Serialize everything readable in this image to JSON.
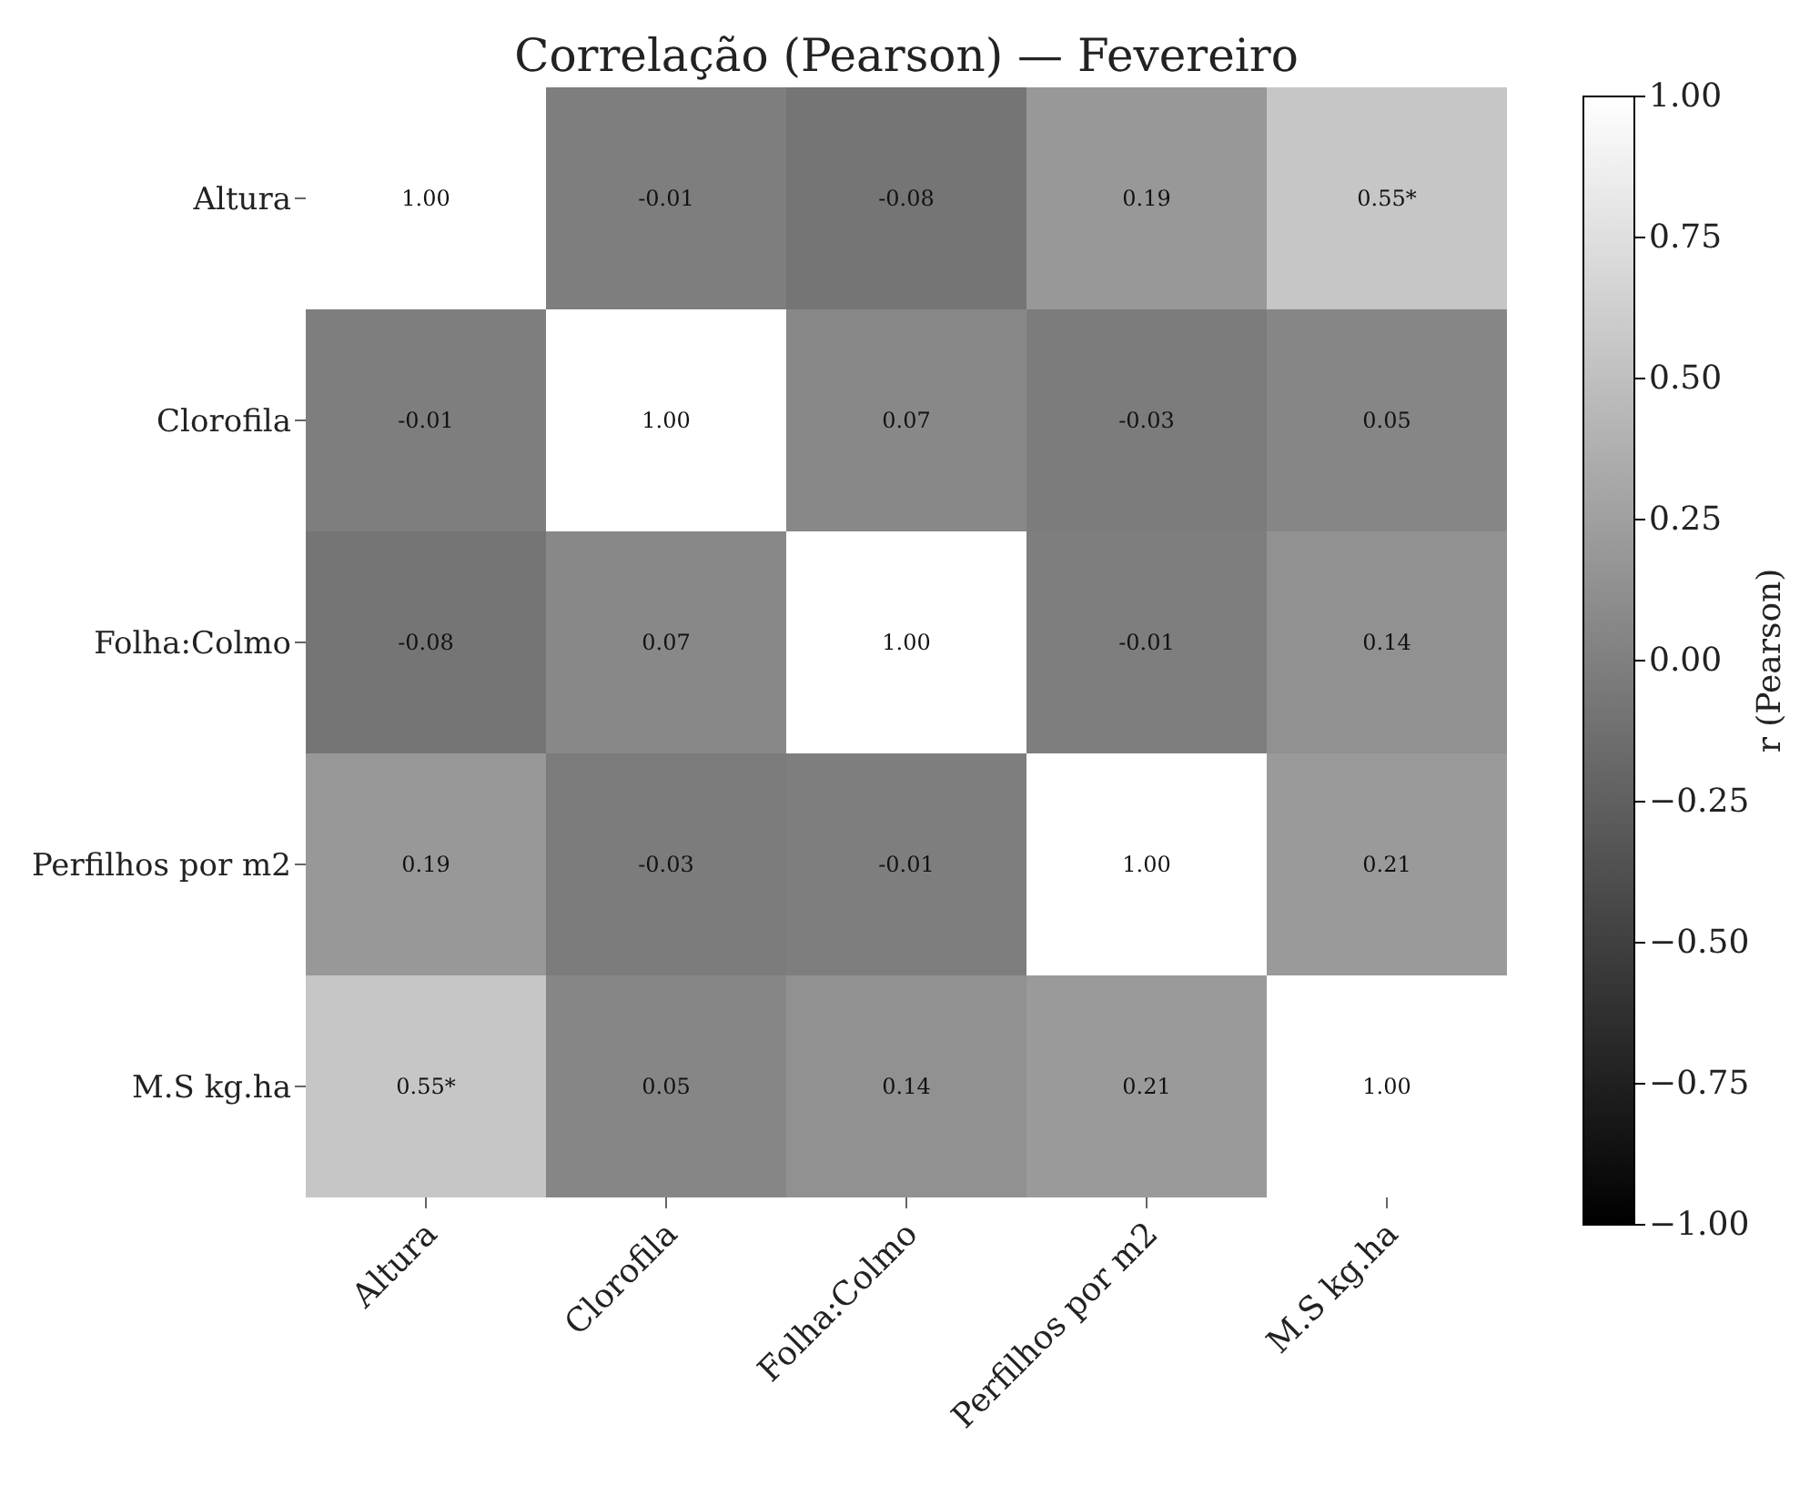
{
  "chart_data": {
    "type": "heatmap",
    "title": "Correlação (Pearson) — Fevereiro",
    "categories": [
      "Altura",
      "Clorofila",
      "Folha:Colmo",
      "Perfilhos por m2",
      "M.S kg.ha"
    ],
    "y_categories": [
      "Altura",
      "Clorofila",
      "Folha:Colmo",
      "Perfilhos por m2",
      "M.S kg.ha"
    ],
    "cells": [
      [
        1.0,
        -0.01,
        -0.08,
        0.19,
        0.55
      ],
      [
        -0.01,
        1.0,
        0.07,
        -0.03,
        0.05
      ],
      [
        -0.08,
        0.07,
        1.0,
        -0.01,
        0.14
      ],
      [
        0.19,
        -0.03,
        -0.01,
        1.0,
        0.21
      ],
      [
        0.55,
        0.05,
        0.14,
        0.21,
        1.0
      ]
    ],
    "cell_labels": [
      [
        "1.00",
        "-0.01",
        "-0.08",
        "0.19",
        "0.55*"
      ],
      [
        "-0.01",
        "1.00",
        "0.07",
        "-0.03",
        "0.05"
      ],
      [
        "-0.08",
        "0.07",
        "1.00",
        "-0.01",
        "0.14"
      ],
      [
        "0.19",
        "-0.03",
        "-0.01",
        "1.00",
        "0.21"
      ],
      [
        "0.55*",
        "0.05",
        "0.14",
        "0.21",
        "1.00"
      ]
    ],
    "clabel": "r (Pearson)",
    "clim": [
      -1,
      1
    ],
    "cticks": [
      {
        "value": 1,
        "label": "1.00"
      },
      {
        "value": 0.75,
        "label": "0.75"
      },
      {
        "value": 0.5,
        "label": "0.50"
      },
      {
        "value": 0.25,
        "label": "0.25"
      },
      {
        "value": 0,
        "label": "0.00"
      },
      {
        "value": -0.25,
        "label": "−0.25"
      },
      {
        "value": -0.5,
        "label": "−0.50"
      },
      {
        "value": -0.75,
        "label": "−0.75"
      },
      {
        "value": -1,
        "label": "−1.00"
      }
    ]
  }
}
